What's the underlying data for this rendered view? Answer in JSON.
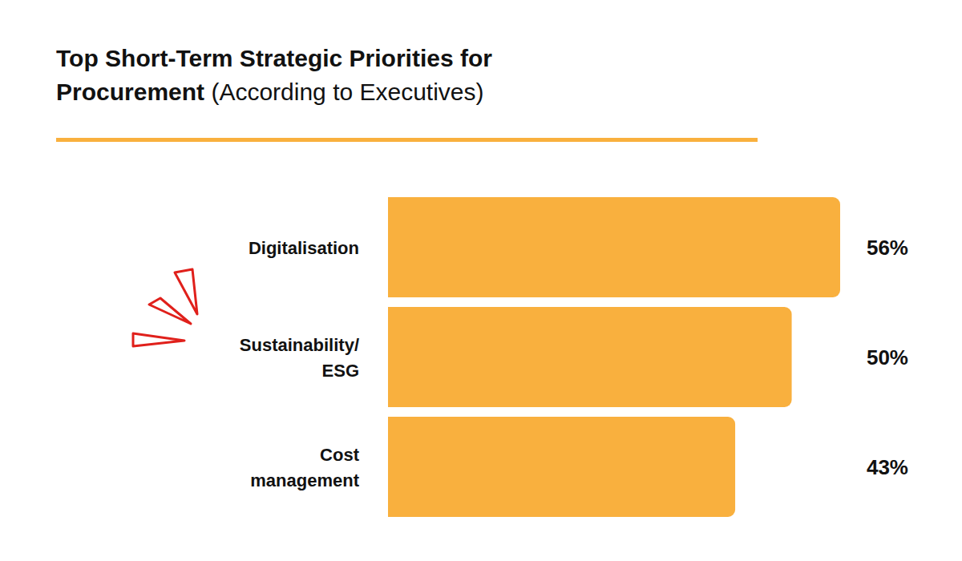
{
  "chart_data": {
    "type": "bar",
    "orientation": "horizontal",
    "title": "Top Short-Term Strategic Priorities for Procurement",
    "subtitle": "(According to Executives)",
    "categories": [
      "Digitalisation",
      "Sustainability/ESG",
      "Cost management"
    ],
    "values": [
      56,
      50,
      43
    ],
    "value_labels": [
      "56%",
      "50%",
      "43%"
    ],
    "color": "#f9b03e",
    "xlim": [
      0,
      56
    ],
    "tick_labels": false,
    "data_labels": true,
    "grid": false
  }
}
